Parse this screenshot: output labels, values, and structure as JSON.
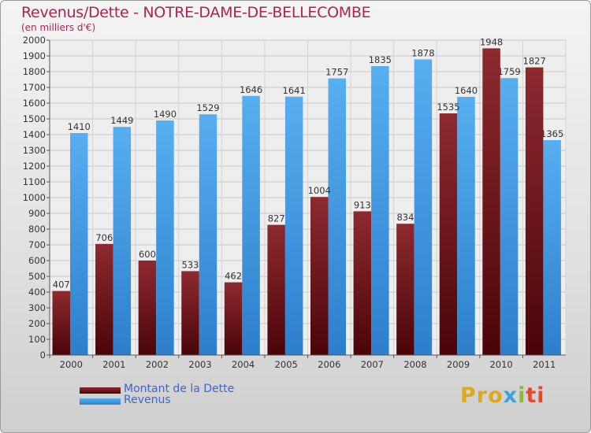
{
  "chart_data": {
    "type": "bar",
    "title": "Revenus/Dette - NOTRE-DAME-DE-BELLECOMBE",
    "subtitle": "(en milliers d'€)",
    "categories": [
      "2000",
      "2001",
      "2002",
      "2003",
      "2004",
      "2005",
      "2006",
      "2007",
      "2008",
      "2009",
      "2010",
      "2011"
    ],
    "series": [
      {
        "name": "Montant de la Dette",
        "color": "#7a1a1f",
        "values": [
          407,
          706,
          600,
          533,
          462,
          827,
          1004,
          913,
          834,
          1535,
          1948,
          1827
        ]
      },
      {
        "name": "Revenus",
        "color": "#4aa2e8",
        "values": [
          1410,
          1449,
          1490,
          1529,
          1646,
          1641,
          1757,
          1835,
          1878,
          1640,
          1759,
          1365
        ]
      }
    ],
    "ylim": [
      0,
      2000
    ],
    "yticks": [
      0,
      100,
      200,
      300,
      400,
      500,
      600,
      700,
      800,
      900,
      1000,
      1100,
      1200,
      1300,
      1400,
      1500,
      1600,
      1700,
      1800,
      1900,
      2000
    ],
    "grid": true,
    "legend": "bottom-left"
  },
  "logo": {
    "p1": "Pro",
    "p2": "x",
    "p3": "i",
    "p4": "ti"
  }
}
